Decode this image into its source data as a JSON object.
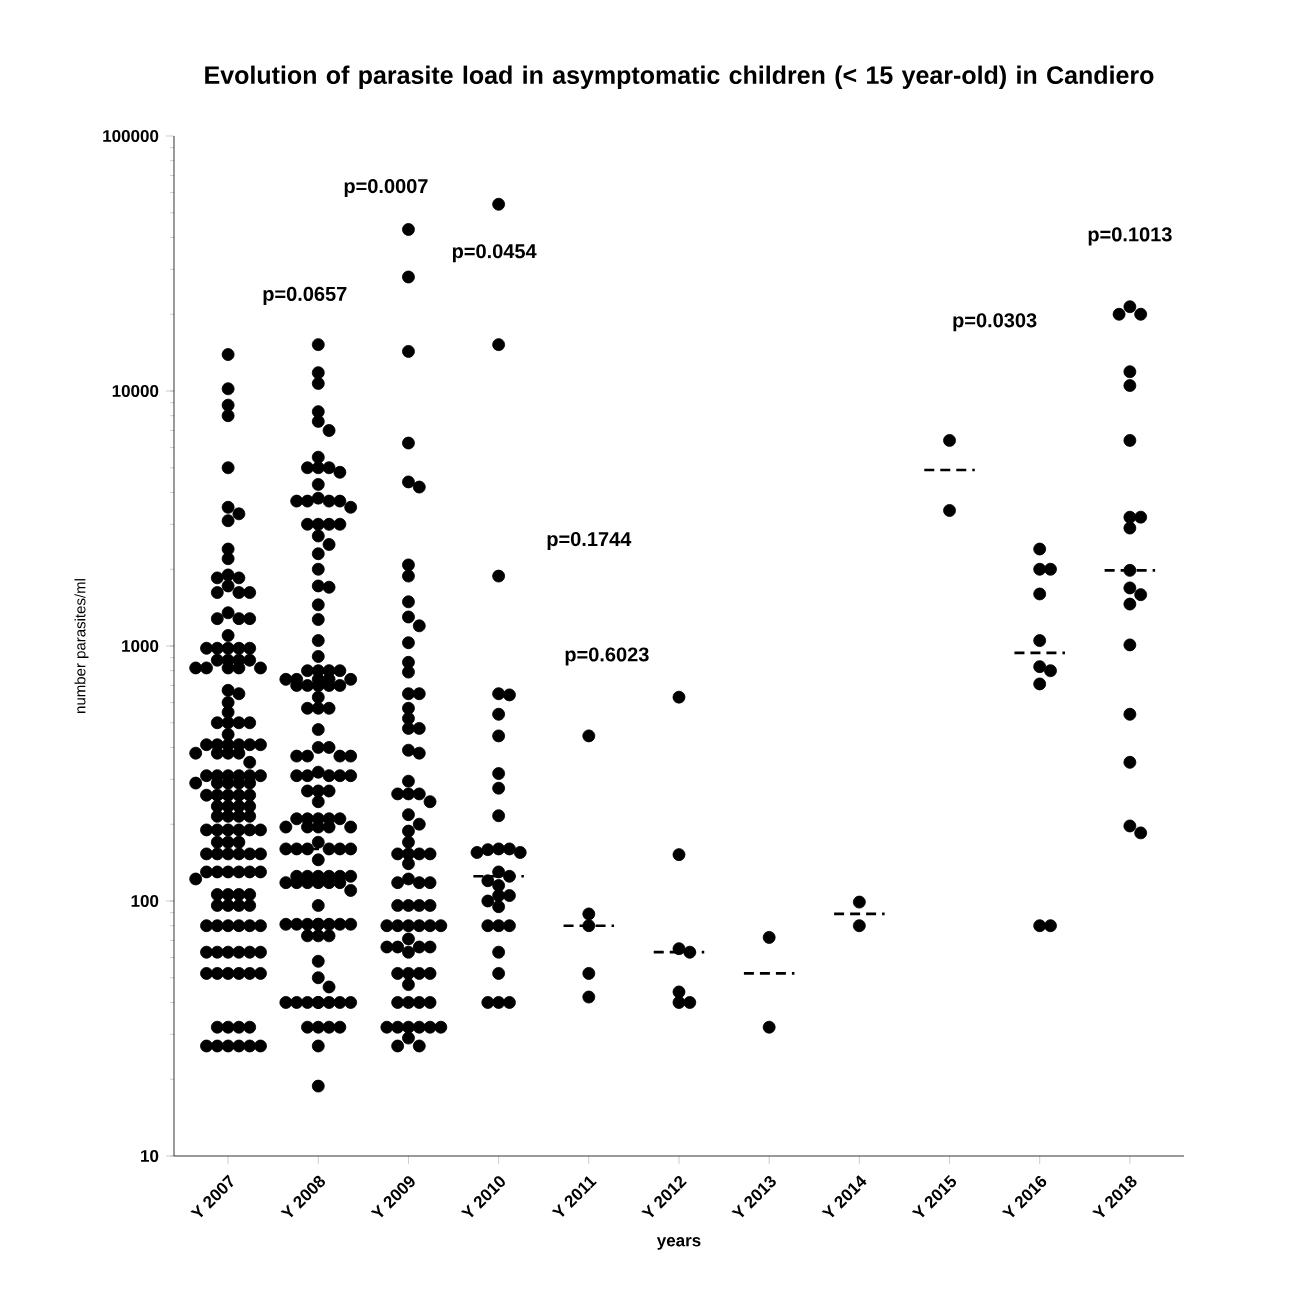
{
  "chart_data": {
    "type": "scatter",
    "title": "Evolution of parasite load in asymptomatic children (< 15 year-old) in Candiero",
    "xlabel": "years",
    "ylabel": "number parasites/ml",
    "categories": [
      "Y 2007",
      "Y 2008",
      "Y 2009",
      "Y 2010",
      "Y 2011",
      "Y 2012",
      "Y 2013",
      "Y 2014",
      "Y 2015",
      "Y 2016",
      "Y 2018"
    ],
    "log": "y",
    "ylim": [
      10,
      100000
    ],
    "yticks": [
      10,
      100,
      1000,
      10000,
      100000
    ],
    "marker": "circle",
    "series": [
      {
        "color": "#000000",
        "x": [
          "Y 2007",
          "Y 2007",
          "Y 2007",
          "Y 2007",
          "Y 2007",
          "Y 2007",
          "Y 2007",
          "Y 2007",
          "Y 2007",
          "Y 2007",
          "Y 2007",
          "Y 2007",
          "Y 2007",
          "Y 2007",
          "Y 2007",
          "Y 2007",
          "Y 2007",
          "Y 2007",
          "Y 2007",
          "Y 2007",
          "Y 2007",
          "Y 2007",
          "Y 2007",
          "Y 2007",
          "Y 2007",
          "Y 2007",
          "Y 2007",
          "Y 2007",
          "Y 2007",
          "Y 2007",
          "Y 2007",
          "Y 2007",
          "Y 2007",
          "Y 2007",
          "Y 2007",
          "Y 2007",
          "Y 2007",
          "Y 2007",
          "Y 2007",
          "Y 2007",
          "Y 2007",
          "Y 2007",
          "Y 2007",
          "Y 2007",
          "Y 2007",
          "Y 2007",
          "Y 2007",
          "Y 2007",
          "Y 2007",
          "Y 2007",
          "Y 2007",
          "Y 2007",
          "Y 2007",
          "Y 2007",
          "Y 2007",
          "Y 2007",
          "Y 2007",
          "Y 2007",
          "Y 2007",
          "Y 2007",
          "Y 2007",
          "Y 2007",
          "Y 2007",
          "Y 2007",
          "Y 2007",
          "Y 2007",
          "Y 2007",
          "Y 2007",
          "Y 2007",
          "Y 2007",
          "Y 2007",
          "Y 2007",
          "Y 2007",
          "Y 2007",
          "Y 2007",
          "Y 2007",
          "Y 2007",
          "Y 2007",
          "Y 2007",
          "Y 2007",
          "Y 2007",
          "Y 2007",
          "Y 2007",
          "Y 2007",
          "Y 2007",
          "Y 2007",
          "Y 2007",
          "Y 2007",
          "Y 2007",
          "Y 2007",
          "Y 2007",
          "Y 2007",
          "Y 2007",
          "Y 2007",
          "Y 2007",
          "Y 2007",
          "Y 2007",
          "Y 2007",
          "Y 2007",
          "Y 2007",
          "Y 2007",
          "Y 2007",
          "Y 2007",
          "Y 2007",
          "Y 2007",
          "Y 2007",
          "Y 2007",
          "Y 2007",
          "Y 2007",
          "Y 2007",
          "Y 2007",
          "Y 2007",
          "Y 2007",
          "Y 2007",
          "Y 2007",
          "Y 2007",
          "Y 2007",
          "Y 2007",
          "Y 2007",
          "Y 2007",
          "Y 2007",
          "Y 2007",
          "Y 2007",
          "Y 2007",
          "Y 2007",
          "Y 2007",
          "Y 2007",
          "Y 2007",
          "Y 2007",
          "Y 2007",
          "Y 2007",
          "Y 2007",
          "Y 2007",
          "Y 2007",
          "Y 2007",
          "Y 2007",
          "Y 2007",
          "Y 2007"
        ],
        "values": [
          13900,
          10200,
          8800,
          8000,
          5000,
          3500,
          3300,
          3100,
          2400,
          2200,
          1900,
          1850,
          1850,
          1720,
          1620,
          1620,
          1620,
          1350,
          1280,
          1280,
          1280,
          1100,
          980,
          980,
          980,
          980,
          980,
          880,
          880,
          880,
          880,
          820,
          820,
          820,
          820,
          820,
          670,
          650,
          600,
          550,
          500,
          500,
          500,
          500,
          450,
          410,
          410,
          410,
          410,
          410,
          410,
          380,
          380,
          380,
          380,
          350,
          310,
          310,
          310,
          310,
          310,
          310,
          290,
          290,
          290,
          290,
          290,
          260,
          260,
          260,
          260,
          260,
          235,
          235,
          235,
          235,
          215,
          215,
          215,
          215,
          190,
          190,
          190,
          190,
          190,
          190,
          170,
          170,
          170,
          153,
          153,
          153,
          153,
          153,
          153,
          130,
          130,
          130,
          130,
          130,
          130,
          122,
          106,
          106,
          106,
          106,
          96,
          96,
          96,
          96,
          80,
          80,
          80,
          80,
          80,
          80,
          63,
          63,
          63,
          63,
          63,
          63,
          52,
          52,
          52,
          52,
          52,
          52,
          32,
          32,
          32,
          32,
          27,
          27,
          27,
          27,
          27,
          27
        ]
      },
      {
        "color": "#000000",
        "x": [
          "Y 2008",
          "Y 2008",
          "Y 2008",
          "Y 2008",
          "Y 2008",
          "Y 2008",
          "Y 2008",
          "Y 2008",
          "Y 2008",
          "Y 2008",
          "Y 2008",
          "Y 2008",
          "Y 2008",
          "Y 2008",
          "Y 2008",
          "Y 2008",
          "Y 2008",
          "Y 2008",
          "Y 2008",
          "Y 2008",
          "Y 2008",
          "Y 2008",
          "Y 2008",
          "Y 2008",
          "Y 2008",
          "Y 2008",
          "Y 2008",
          "Y 2008",
          "Y 2008",
          "Y 2008",
          "Y 2008",
          "Y 2008",
          "Y 2008",
          "Y 2008",
          "Y 2008",
          "Y 2008",
          "Y 2008",
          "Y 2008",
          "Y 2008",
          "Y 2008",
          "Y 2008",
          "Y 2008",
          "Y 2008",
          "Y 2008",
          "Y 2008",
          "Y 2008",
          "Y 2008",
          "Y 2008",
          "Y 2008",
          "Y 2008",
          "Y 2008",
          "Y 2008",
          "Y 2008",
          "Y 2008",
          "Y 2008",
          "Y 2008",
          "Y 2008",
          "Y 2008",
          "Y 2008",
          "Y 2008",
          "Y 2008",
          "Y 2008",
          "Y 2008",
          "Y 2008",
          "Y 2008",
          "Y 2008",
          "Y 2008",
          "Y 2008",
          "Y 2008",
          "Y 2008",
          "Y 2008",
          "Y 2008",
          "Y 2008",
          "Y 2008",
          "Y 2008",
          "Y 2008",
          "Y 2008",
          "Y 2008",
          "Y 2008",
          "Y 2008",
          "Y 2008",
          "Y 2008",
          "Y 2008",
          "Y 2008",
          "Y 2008",
          "Y 2008",
          "Y 2008",
          "Y 2008",
          "Y 2008",
          "Y 2008",
          "Y 2008",
          "Y 2008",
          "Y 2008",
          "Y 2008",
          "Y 2008",
          "Y 2008",
          "Y 2008",
          "Y 2008",
          "Y 2008",
          "Y 2008",
          "Y 2008",
          "Y 2008",
          "Y 2008",
          "Y 2008",
          "Y 2008",
          "Y 2008",
          "Y 2008",
          "Y 2008",
          "Y 2008",
          "Y 2008",
          "Y 2008",
          "Y 2008",
          "Y 2008",
          "Y 2008",
          "Y 2008",
          "Y 2008",
          "Y 2008",
          "Y 2008",
          "Y 2008",
          "Y 2008",
          "Y 2008",
          "Y 2008",
          "Y 2008",
          "Y 2008",
          "Y 2008",
          "Y 2008",
          "Y 2008"
        ],
        "values": [
          15200,
          11800,
          10700,
          8300,
          7600,
          7000,
          5500,
          5000,
          5000,
          5000,
          4800,
          4300,
          3800,
          3700,
          3700,
          3700,
          3700,
          3500,
          3000,
          3000,
          3000,
          3000,
          2700,
          2500,
          2300,
          2000,
          1720,
          1700,
          1450,
          1270,
          1050,
          910,
          800,
          800,
          800,
          800,
          740,
          740,
          740,
          740,
          740,
          700,
          700,
          700,
          700,
          700,
          630,
          570,
          570,
          570,
          470,
          400,
          400,
          370,
          370,
          370,
          370,
          320,
          310,
          310,
          310,
          310,
          310,
          270,
          270,
          270,
          245,
          210,
          210,
          210,
          210,
          210,
          195,
          195,
          195,
          195,
          195,
          170,
          160,
          160,
          160,
          160,
          160,
          160,
          145,
          125,
          125,
          125,
          125,
          125,
          125,
          118,
          118,
          118,
          118,
          118,
          118,
          110,
          96,
          81,
          81,
          81,
          81,
          81,
          81,
          81,
          81,
          73,
          73,
          73,
          58,
          50,
          46,
          40,
          40,
          40,
          40,
          40,
          40,
          40,
          40,
          32,
          32,
          32,
          32,
          27,
          18.8
        ]
      },
      {
        "color": "#000000",
        "x": [
          "Y 2009",
          "Y 2009",
          "Y 2009",
          "Y 2009",
          "Y 2009",
          "Y 2009",
          "Y 2009",
          "Y 2009",
          "Y 2009",
          "Y 2009",
          "Y 2009",
          "Y 2009",
          "Y 2009",
          "Y 2009",
          "Y 2009",
          "Y 2009",
          "Y 2009",
          "Y 2009",
          "Y 2009",
          "Y 2009",
          "Y 2009",
          "Y 2009",
          "Y 2009",
          "Y 2009",
          "Y 2009",
          "Y 2009",
          "Y 2009",
          "Y 2009",
          "Y 2009",
          "Y 2009",
          "Y 2009",
          "Y 2009",
          "Y 2009",
          "Y 2009",
          "Y 2009",
          "Y 2009",
          "Y 2009",
          "Y 2009",
          "Y 2009",
          "Y 2009",
          "Y 2009",
          "Y 2009",
          "Y 2009",
          "Y 2009",
          "Y 2009",
          "Y 2009",
          "Y 2009",
          "Y 2009",
          "Y 2009",
          "Y 2009",
          "Y 2009",
          "Y 2009",
          "Y 2009",
          "Y 2009",
          "Y 2009",
          "Y 2009",
          "Y 2009",
          "Y 2009",
          "Y 2009",
          "Y 2009",
          "Y 2009",
          "Y 2009",
          "Y 2009",
          "Y 2009",
          "Y 2009",
          "Y 2009",
          "Y 2009",
          "Y 2009",
          "Y 2009",
          "Y 2009",
          "Y 2009",
          "Y 2009",
          "Y 2009",
          "Y 2009"
        ],
        "values": [
          43000,
          28000,
          14300,
          6250,
          4400,
          4200,
          2080,
          1880,
          1490,
          1300,
          1200,
          1030,
          863,
          790,
          650,
          650,
          570,
          520,
          475,
          475,
          390,
          380,
          295,
          263,
          263,
          263,
          245,
          218,
          200,
          188,
          170,
          153,
          153,
          153,
          153,
          140,
          122,
          118,
          118,
          118,
          96,
          96,
          96,
          96,
          80,
          80,
          80,
          80,
          80,
          80,
          71,
          66,
          66,
          66,
          66,
          63,
          52,
          52,
          52,
          52,
          47,
          40,
          40,
          40,
          40,
          32,
          32,
          32,
          32,
          32,
          32,
          29,
          27,
          27
        ]
      },
      {
        "color": "#000000",
        "x": [
          "Y 2010",
          "Y 2010",
          "Y 2010",
          "Y 2010",
          "Y 2010",
          "Y 2010",
          "Y 2010",
          "Y 2010",
          "Y 2010",
          "Y 2010",
          "Y 2010",
          "Y 2010",
          "Y 2010",
          "Y 2010",
          "Y 2010",
          "Y 2010",
          "Y 2010",
          "Y 2010",
          "Y 2010",
          "Y 2010",
          "Y 2010",
          "Y 2010",
          "Y 2010",
          "Y 2010",
          "Y 2010",
          "Y 2010",
          "Y 2010",
          "Y 2010",
          "Y 2010",
          "Y 2010",
          "Y 2010"
        ],
        "values": [
          54000,
          15200,
          1880,
          650,
          643,
          540,
          444,
          316,
          277,
          216,
          160,
          160,
          159,
          155,
          155,
          130,
          125,
          120,
          115,
          105,
          105,
          100,
          95,
          80,
          80,
          80,
          63,
          52,
          40,
          40,
          40
        ]
      },
      {
        "color": "#000000",
        "x": [
          "Y 2011",
          "Y 2011",
          "Y 2011",
          "Y 2011",
          "Y 2011"
        ],
        "values": [
          444,
          89,
          80,
          52,
          42
        ]
      },
      {
        "color": "#000000",
        "x": [
          "Y 2012",
          "Y 2012",
          "Y 2012",
          "Y 2012",
          "Y 2012",
          "Y 2012",
          "Y 2012"
        ],
        "values": [
          630,
          152,
          65,
          63,
          44,
          40,
          40
        ]
      },
      {
        "color": "#000000",
        "x": [
          "Y 2013",
          "Y 2013"
        ],
        "values": [
          72,
          32
        ]
      },
      {
        "color": "#000000",
        "x": [
          "Y 2014",
          "Y 2014"
        ],
        "values": [
          99,
          80
        ]
      },
      {
        "color": "#000000",
        "x": [
          "Y 2015",
          "Y 2015"
        ],
        "values": [
          6400,
          3400
        ]
      },
      {
        "color": "#000000",
        "x": [
          "Y 2016",
          "Y 2016",
          "Y 2016",
          "Y 2016",
          "Y 2016",
          "Y 2016",
          "Y 2016",
          "Y 2016",
          "Y 2016",
          "Y 2016"
        ],
        "values": [
          2400,
          2000,
          2000,
          1600,
          1050,
          830,
          800,
          710,
          80,
          80
        ]
      },
      {
        "color": "#000000",
        "x": [
          "Y 2018",
          "Y 2018",
          "Y 2018",
          "Y 2018",
          "Y 2018",
          "Y 2018",
          "Y 2018",
          "Y 2018",
          "Y 2018",
          "Y 2018",
          "Y 2018",
          "Y 2018",
          "Y 2018",
          "Y 2018",
          "Y 2018",
          "Y 2018",
          "Y 2018",
          "Y 2018"
        ],
        "values": [
          21400,
          20000,
          20000,
          11900,
          10500,
          6400,
          3200,
          3200,
          2900,
          1980,
          1690,
          1590,
          1460,
          1010,
          540,
          350,
          197,
          185
        ]
      },
      {
        "type": "box",
        "color": "#000000",
        "line_style": "dashed",
        "boxes": [
          {
            "low": 254,
            "q1": 254,
            "median": 254,
            "q3": 254,
            "high": 254
          },
          {
            "low": 160,
            "q1": 160,
            "median": 160,
            "q3": 160,
            "high": 160
          },
          {
            "low": 80,
            "q1": 80,
            "median": 80,
            "q3": 80,
            "high": 80
          },
          {
            "low": 125,
            "q1": 125,
            "median": 125,
            "q3": 125,
            "high": 125
          },
          {
            "low": 80,
            "q1": 80,
            "median": 80,
            "q3": 80,
            "high": 80
          },
          {
            "low": 63,
            "q1": 63,
            "median": 63,
            "q3": 63,
            "high": 63
          },
          {
            "low": 52,
            "q1": 52,
            "median": 52,
            "q3": 52,
            "high": 52
          },
          {
            "low": 89,
            "q1": 89,
            "median": 89,
            "q3": 89,
            "high": 89
          },
          {
            "low": 4900,
            "q1": 4900,
            "median": 4900,
            "q3": 4900,
            "high": 4900
          },
          {
            "low": 940,
            "q1": 940,
            "median": 940,
            "q3": 940,
            "high": 940
          },
          {
            "low": 1980,
            "q1": 1980,
            "median": 1980,
            "q3": 1980,
            "high": 1980
          }
        ]
      }
    ],
    "annotations": [
      "p=0.0657",
      "p=0.0007",
      "p=0.0454",
      "p=0.1744",
      "p=0.6023",
      "p=0.0303",
      "p=0.1013"
    ]
  }
}
